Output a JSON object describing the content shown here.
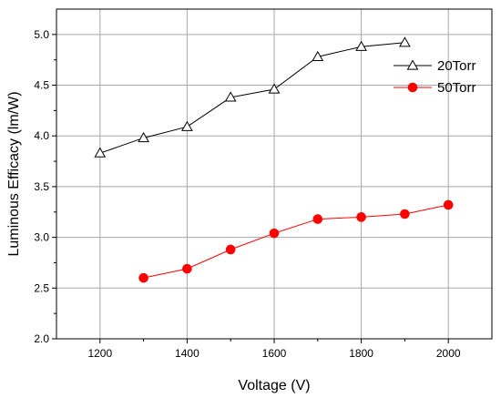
{
  "chart_data": {
    "type": "line",
    "title": "",
    "xlabel": "Voltage (V)",
    "ylabel": "Luminous Efficacy (lm/W)",
    "xlim": [
      1100,
      2100
    ],
    "ylim": [
      2.0,
      5.25
    ],
    "xticks": [
      1200,
      1400,
      1600,
      1800,
      2000
    ],
    "xtick_labels": [
      "1200",
      "1400",
      "1600",
      "1800",
      "2000"
    ],
    "yticks": [
      2.0,
      2.5,
      3.0,
      3.5,
      4.0,
      4.5,
      5.0
    ],
    "ytick_labels": [
      "2.0",
      "2.5",
      "3.0",
      "3.5",
      "4.0",
      "4.5",
      "5.0"
    ],
    "grid": true,
    "legend_position": "top-right",
    "series": [
      {
        "name": "20Torr",
        "color": "#000000",
        "marker": "open-triangle",
        "x": [
          1200,
          1300,
          1400,
          1500,
          1600,
          1700,
          1800,
          1900
        ],
        "y": [
          3.83,
          3.98,
          4.09,
          4.38,
          4.46,
          4.78,
          4.88,
          4.92
        ]
      },
      {
        "name": "50Torr",
        "color": "#ff0000",
        "marker": "filled-circle",
        "x": [
          1300,
          1400,
          1500,
          1600,
          1700,
          1800,
          1900,
          2000
        ],
        "y": [
          2.6,
          2.69,
          2.88,
          3.04,
          3.18,
          3.2,
          3.23,
          3.32
        ]
      }
    ]
  }
}
